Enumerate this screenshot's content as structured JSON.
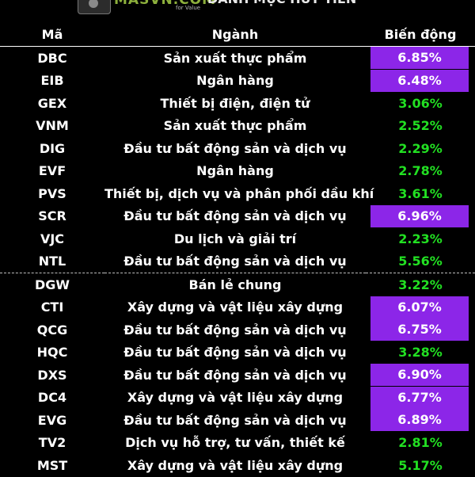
{
  "header": {
    "brand": "MASVN.COM",
    "brand_sub": "for Value",
    "title": "DANH MỤC HÚT TIỀN",
    "accent_color": "#8c26e8",
    "positive_color": "#22e022"
  },
  "table": {
    "columns": [
      "Mã",
      "Ngành",
      "Biến động"
    ],
    "rows": [
      {
        "code": "DBC",
        "industry": "Sản xuất thực phẩm",
        "change": "6.85%",
        "highlight": true
      },
      {
        "code": "EIB",
        "industry": "Ngân hàng",
        "change": "6.48%",
        "highlight": true
      },
      {
        "code": "GEX",
        "industry": "Thiết bị điện, điện tử",
        "change": "3.06%",
        "highlight": false
      },
      {
        "code": "VNM",
        "industry": "Sản xuất thực phẩm",
        "change": "2.52%",
        "highlight": false
      },
      {
        "code": "DIG",
        "industry": "Đầu tư bất động sản và dịch vụ",
        "change": "2.29%",
        "highlight": false
      },
      {
        "code": "EVF",
        "industry": "Ngân hàng",
        "change": "2.78%",
        "highlight": false
      },
      {
        "code": "PVS",
        "industry": "Thiết bị, dịch vụ và phân phối dầu khí",
        "change": "3.61%",
        "highlight": false
      },
      {
        "code": "SCR",
        "industry": "Đầu tư bất động sản và dịch vụ",
        "change": "6.96%",
        "highlight": true
      },
      {
        "code": "VJC",
        "industry": "Du lịch và giải trí",
        "change": "2.23%",
        "highlight": false
      },
      {
        "code": "NTL",
        "industry": "Đầu tư bất động sản và dịch vụ",
        "change": "5.56%",
        "highlight": false
      },
      {
        "code": "DGW",
        "industry": "Bán lẻ chung",
        "change": "3.22%",
        "highlight": false,
        "separator": true
      },
      {
        "code": "CTI",
        "industry": "Xây dựng và vật liệu xây dựng",
        "change": "6.07%",
        "highlight": true
      },
      {
        "code": "QCG",
        "industry": "Đầu tư bất động sản và dịch vụ",
        "change": "6.75%",
        "highlight": true
      },
      {
        "code": "HQC",
        "industry": "Đầu tư bất động sản và dịch vụ",
        "change": "3.28%",
        "highlight": false
      },
      {
        "code": "DXS",
        "industry": "Đầu tư bất động sản và dịch vụ",
        "change": "6.90%",
        "highlight": true
      },
      {
        "code": "DC4",
        "industry": "Xây dựng và vật liệu xây dựng",
        "change": "6.77%",
        "highlight": true
      },
      {
        "code": "EVG",
        "industry": "Đầu tư bất động sản và dịch vụ",
        "change": "6.89%",
        "highlight": true
      },
      {
        "code": "TV2",
        "industry": "Dịch vụ hỗ trợ, tư vấn, thiết kế",
        "change": "2.81%",
        "highlight": false
      },
      {
        "code": "MST",
        "industry": "Xây dựng và vật liệu xây dựng",
        "change": "5.17%",
        "highlight": false
      }
    ]
  }
}
